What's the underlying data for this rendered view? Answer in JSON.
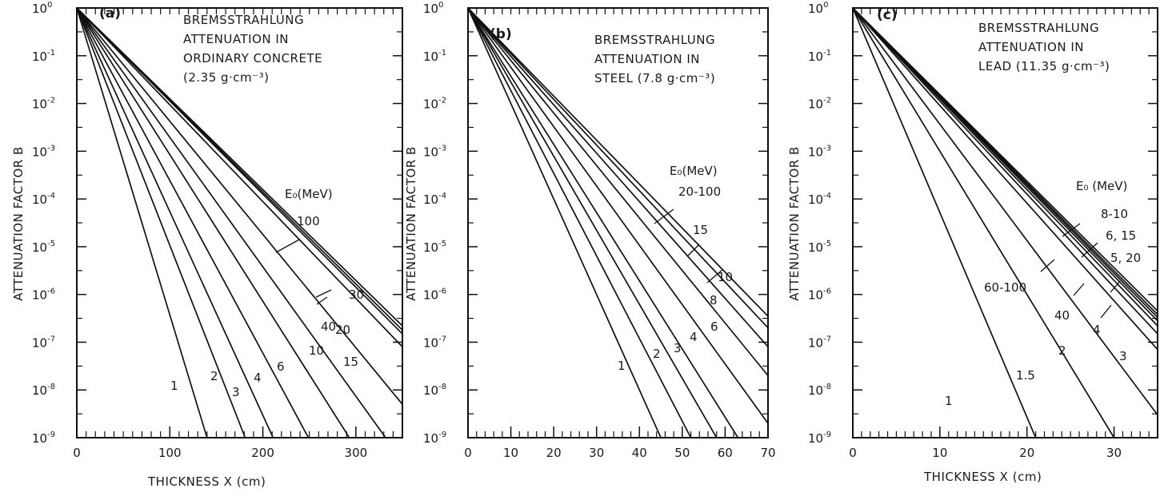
{
  "chart_data": [
    {
      "type": "line",
      "panel_label": "(a)",
      "annotation": [
        "BREMSSTRAHLUNG",
        "ATTENUATION IN",
        "ORDINARY CONCRETE",
        "(2.35 g·cm⁻³)"
      ],
      "xlabel": "THICKNESS  X     (cm)",
      "ylabel": "ATTENUATION  FACTOR  B",
      "xlim": [
        0,
        350
      ],
      "ylim": [
        1e-09,
        1
      ],
      "yscale": "log",
      "x_ticks": [
        "0",
        "100",
        "200",
        "300"
      ],
      "y_ticks": [
        "10^0",
        "10^-1",
        "10^-2",
        "10^-3",
        "10^-4",
        "10^-5",
        "10^-6",
        "10^-7",
        "10^-8",
        "10^-9"
      ],
      "legend_title": "E₀(MeV)",
      "series": [
        {
          "name": "1",
          "x": [
            0,
            140
          ],
          "y": [
            1,
            1e-09
          ]
        },
        {
          "name": "2",
          "x": [
            0,
            181
          ],
          "y": [
            1,
            1e-09
          ]
        },
        {
          "name": "3",
          "x": [
            0,
            211
          ],
          "y": [
            1,
            1e-09
          ]
        },
        {
          "name": "4",
          "x": [
            0,
            249
          ],
          "y": [
            1,
            1e-09
          ]
        },
        {
          "name": "6",
          "x": [
            0,
            293
          ],
          "y": [
            1,
            1e-09
          ]
        },
        {
          "name": "10",
          "x": [
            0,
            332
          ],
          "y": [
            1,
            1e-09
          ]
        },
        {
          "name": "15",
          "x": [
            0,
            350
          ],
          "y": [
            1,
            5e-09
          ]
        },
        {
          "name": "20",
          "x": [
            0,
            350
          ],
          "y": [
            1,
            8e-08
          ]
        },
        {
          "name": "30",
          "x": [
            0,
            350
          ],
          "y": [
            1,
            1.5e-07
          ]
        },
        {
          "name": "40",
          "x": [
            0,
            350
          ],
          "y": [
            1,
            1.8e-07
          ]
        },
        {
          "name": "100",
          "x": [
            0,
            350
          ],
          "y": [
            1,
            2.2e-07
          ]
        }
      ]
    },
    {
      "type": "line",
      "panel_label": "(b)",
      "annotation": [
        "BREMSSTRAHLUNG",
        "ATTENUATION IN",
        "STEEL (7.8 g·cm⁻³)"
      ],
      "xlabel": "",
      "ylabel": "ATTENUATION  FACTOR  B",
      "xlim": [
        0,
        70
      ],
      "ylim": [
        1e-09,
        1
      ],
      "yscale": "log",
      "x_ticks": [
        "0",
        "10",
        "20",
        "30",
        "40",
        "50",
        "60",
        "70"
      ],
      "y_ticks": [
        "10^0",
        "10^-1",
        "10^-2",
        "10^-3",
        "10^-4",
        "10^-5",
        "10^-6",
        "10^-7",
        "10^-8",
        "10^-9"
      ],
      "legend_title": "E₀(MeV)",
      "series": [
        {
          "name": "1",
          "x": [
            0,
            45
          ],
          "y": [
            1,
            1e-09
          ]
        },
        {
          "name": "2",
          "x": [
            0,
            52
          ],
          "y": [
            1,
            1e-09
          ]
        },
        {
          "name": "3",
          "x": [
            0,
            58
          ],
          "y": [
            1,
            1e-09
          ]
        },
        {
          "name": "4",
          "x": [
            0,
            63
          ],
          "y": [
            1,
            1e-09
          ]
        },
        {
          "name": "6",
          "x": [
            0,
            70
          ],
          "y": [
            1,
            2e-09
          ]
        },
        {
          "name": "8",
          "x": [
            0,
            70
          ],
          "y": [
            1,
            2e-08
          ]
        },
        {
          "name": "10",
          "x": [
            0,
            70
          ],
          "y": [
            1,
            8e-08
          ]
        },
        {
          "name": "15",
          "x": [
            0,
            70
          ],
          "y": [
            1,
            2e-07
          ]
        },
        {
          "name": "20-100",
          "x": [
            0,
            70
          ],
          "y": [
            1,
            3.5e-07
          ]
        }
      ]
    },
    {
      "type": "line",
      "panel_label": "(c)",
      "annotation": [
        "BREMSSTRAHLUNG",
        "ATTENUATION IN",
        "LEAD (11.35 g·cm⁻³)"
      ],
      "xlabel": "THICKNESS  X     (cm)",
      "ylabel": "ATTENUATION  FACTOR  B",
      "xlim": [
        0,
        35
      ],
      "ylim": [
        1e-09,
        1
      ],
      "yscale": "log",
      "x_ticks": [
        "0",
        "10",
        "20",
        "30"
      ],
      "y_ticks": [
        "10^0",
        "10^-1",
        "10^-2",
        "10^-3",
        "10^-4",
        "10^-5",
        "10^-6",
        "10^-7",
        "10^-8",
        "10^-9"
      ],
      "legend_title": "E₀ (MeV)",
      "series": [
        {
          "name": "1",
          "x": [
            0,
            21
          ],
          "y": [
            1,
            1e-09
          ]
        },
        {
          "name": "1.5",
          "x": [
            0,
            30
          ],
          "y": [
            1,
            1e-09
          ]
        },
        {
          "name": "2",
          "x": [
            0,
            35
          ],
          "y": [
            1,
            3e-09
          ]
        },
        {
          "name": "3",
          "x": [
            0,
            35
          ],
          "y": [
            1,
            7e-08
          ]
        },
        {
          "name": "4",
          "x": [
            0,
            35
          ],
          "y": [
            1,
            1.5e-07
          ]
        },
        {
          "name": "40",
          "x": [
            0,
            35
          ],
          "y": [
            1,
            2.2e-07
          ]
        },
        {
          "name": "60-100",
          "x": [
            0,
            35
          ],
          "y": [
            1,
            2.8e-07
          ]
        },
        {
          "name": "5, 20",
          "x": [
            0,
            35
          ],
          "y": [
            1,
            3.3e-07
          ]
        },
        {
          "name": "6, 15",
          "x": [
            0,
            35
          ],
          "y": [
            1,
            3.8e-07
          ]
        },
        {
          "name": "8-10",
          "x": [
            0,
            35
          ],
          "y": [
            1,
            4.5e-07
          ]
        }
      ]
    }
  ]
}
